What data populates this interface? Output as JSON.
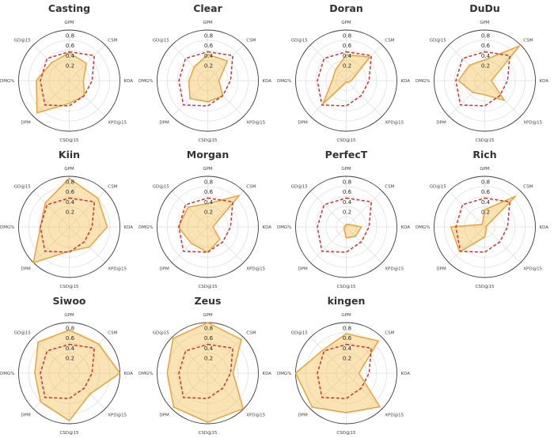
{
  "chart_data": {
    "type": "radar",
    "axes": [
      "GPM",
      "CSM",
      "KDA",
      "XPD@15",
      "CSD@15",
      "DPM",
      "DMG%",
      "GD@15"
    ],
    "axes_order": "clockwise-from-top",
    "radial_ticks": [
      "0.2",
      "0.4",
      "0.6",
      "0.8"
    ],
    "radial_tick_values": [
      0.2,
      0.4,
      0.6,
      0.8
    ],
    "radial_range": [
      0,
      1
    ],
    "grid": true,
    "legend_position": "none",
    "baseline_series": {
      "style": "red-dashed",
      "values": [
        0.57,
        0.7,
        0.45,
        0.42,
        0.5,
        0.68,
        0.57,
        0.62
      ]
    },
    "charts": [
      {
        "title": "Casting",
        "values": [
          0.55,
          0.48,
          0.28,
          0.42,
          0.45,
          0.9,
          0.65,
          0.5
        ]
      },
      {
        "title": "Clear",
        "values": [
          0.52,
          0.55,
          0.22,
          0.42,
          0.42,
          0.5,
          0.37,
          0.38
        ]
      },
      {
        "title": "Doran",
        "values": [
          0.51,
          0.66,
          0.1,
          0.05,
          0.03,
          0.65,
          0.28,
          0.3
        ]
      },
      {
        "title": "DuDu",
        "values": [
          0.41,
          0.97,
          0.13,
          0.55,
          0.28,
          0.33,
          0.52,
          0.43
        ]
      },
      {
        "title": "Kiin",
        "values": [
          0.96,
          0.8,
          0.75,
          0.56,
          0.48,
          1.0,
          0.57,
          0.67
        ]
      },
      {
        "title": "Morgan",
        "values": [
          0.46,
          0.88,
          0.1,
          0.34,
          0.5,
          0.46,
          0.58,
          0.55
        ]
      },
      {
        "title": "PerfecT",
        "values": [
          0.05,
          0.07,
          0.3,
          0.26,
          0.22,
          0.06,
          0.04,
          0.03
        ]
      },
      {
        "title": "Rich",
        "values": [
          0.34,
          0.86,
          0.02,
          0.05,
          0.2,
          0.7,
          0.67,
          0.07
        ]
      },
      {
        "title": "Siwoo",
        "values": [
          0.85,
          0.82,
          1.0,
          0.58,
          0.94,
          0.8,
          0.68,
          0.87
        ]
      },
      {
        "title": "Zeus",
        "values": [
          1.0,
          0.94,
          0.5,
          0.99,
          0.97,
          0.95,
          0.8,
          0.97
        ]
      },
      {
        "title": "kingen",
        "values": [
          0.78,
          0.9,
          0.25,
          0.94,
          0.78,
          0.95,
          1.0,
          0.65
        ]
      }
    ]
  },
  "colors": {
    "player_fill": "#F5C35C",
    "player_stroke": "#E8A33D",
    "baseline_stroke": "#CC3330",
    "grid_line": "#DBDBDB",
    "outer_ring": "#3C3C3C",
    "title_text": "#333333",
    "tick_text": "#262626",
    "axis_label_text": "#3F3F3F",
    "background": "#FFFFFF"
  }
}
